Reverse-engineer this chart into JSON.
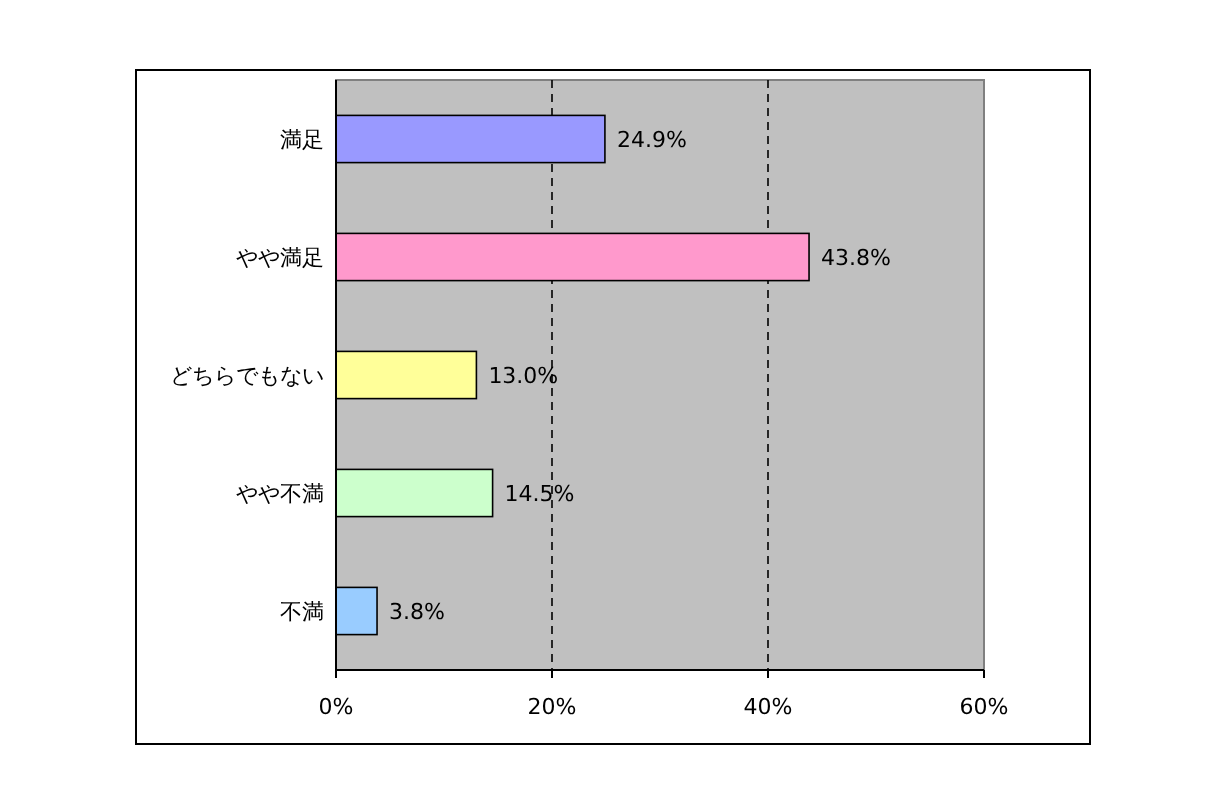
{
  "chart_data": {
    "type": "bar",
    "orientation": "horizontal",
    "categories": [
      "満足",
      "やや満足",
      "どちらでもない",
      "やや不満",
      "不満"
    ],
    "values": [
      24.9,
      43.8,
      13.0,
      14.5,
      3.8
    ],
    "colors": [
      "#9999ff",
      "#ff99cc",
      "#ffff99",
      "#ccffcc",
      "#99ccff"
    ],
    "value_labels": [
      "24.9%",
      "43.8%",
      "13.0%",
      "14.5%",
      "3.8%"
    ],
    "xlim": [
      0,
      60
    ],
    "xticks": [
      {
        "value": 0,
        "label": "0%"
      },
      {
        "value": 20,
        "label": "20%"
      },
      {
        "value": 40,
        "label": "40%"
      },
      {
        "value": 60,
        "label": "60%"
      }
    ],
    "grid": "x",
    "line_style": "dashed"
  }
}
